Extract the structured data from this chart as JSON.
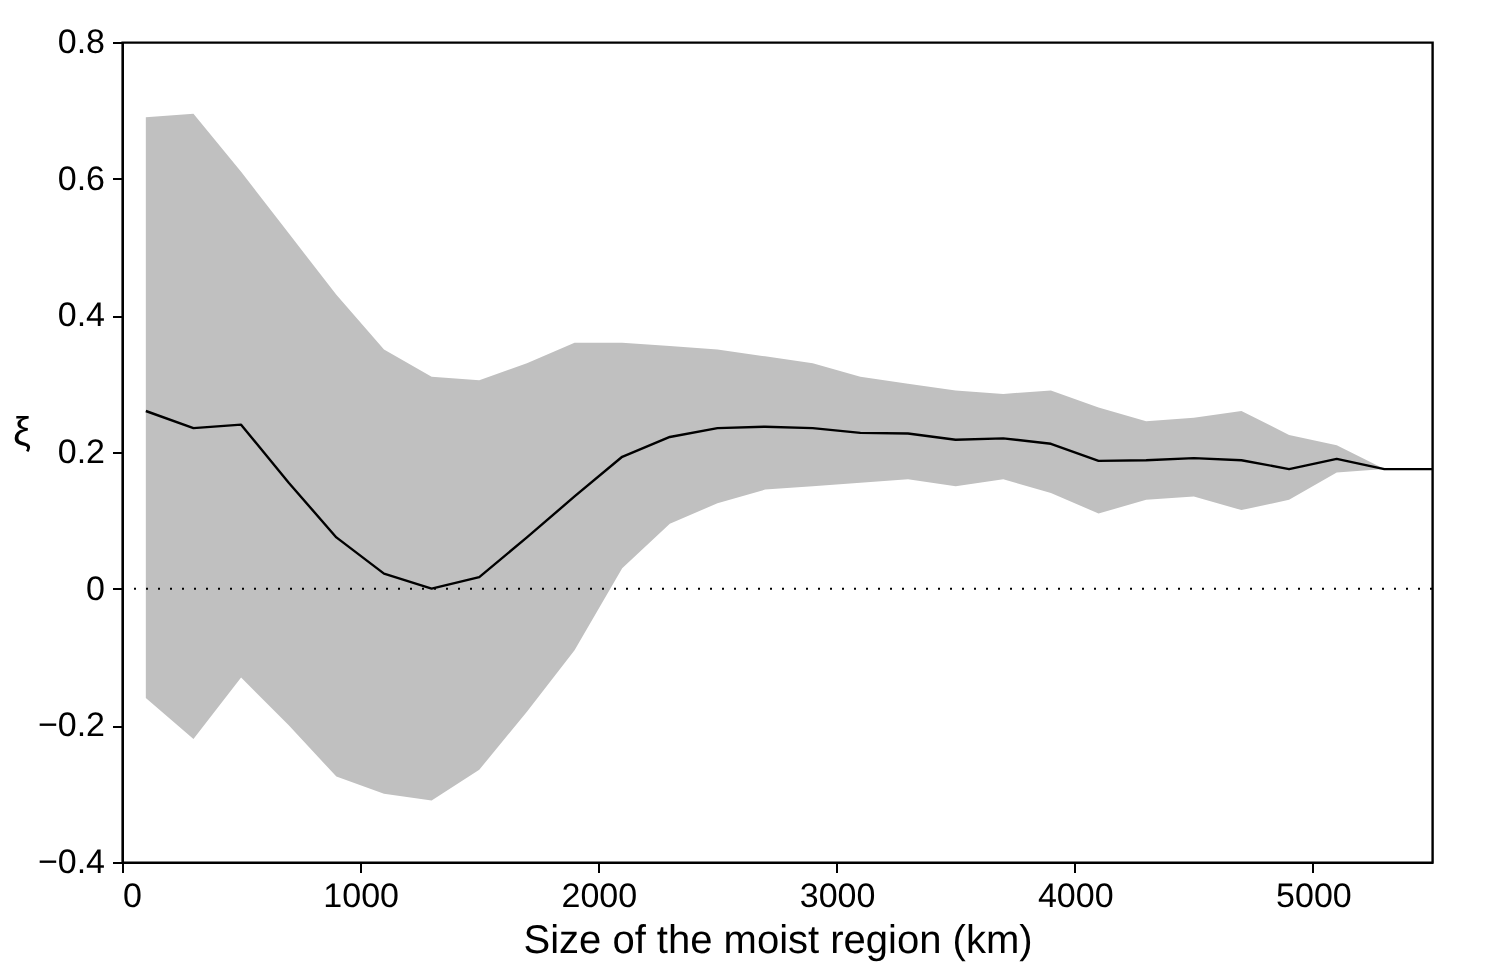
{
  "chart_data": {
    "type": "line",
    "xlabel": "Size of the moist region (km)",
    "ylabel": "ξ",
    "x": [
      100,
      300,
      500,
      700,
      900,
      1100,
      1300,
      1500,
      1700,
      1900,
      2100,
      2300,
      2500,
      2700,
      2900,
      3100,
      3300,
      3500,
      3700,
      3900,
      4100,
      4300,
      4500,
      4700,
      4900,
      5100,
      5300,
      5500
    ],
    "series": [
      {
        "color": "#000000",
        "values": [
          0.26,
          0.235,
          0.24,
          0.155,
          0.075,
          0.022,
          0,
          0.017,
          0.075,
          0.135,
          0.193,
          0.222,
          0.235,
          0.237,
          0.235,
          0.228,
          0.227,
          0.218,
          0.22,
          0.212,
          0.187,
          0.188,
          0.191,
          0.188,
          0.175,
          0.19,
          0.175,
          0.175
        ],
        "upper": [
          0.69,
          0.695,
          0.61,
          0.52,
          0.43,
          0.35,
          0.31,
          0.305,
          0.33,
          0.36,
          0.36,
          0.355,
          0.35,
          0.34,
          0.33,
          0.31,
          0.3,
          0.29,
          0.285,
          0.29,
          0.265,
          0.245,
          0.25,
          0.26,
          0.225,
          0.21,
          0.175,
          0.175
        ],
        "lower": [
          -0.16,
          -0.22,
          -0.13,
          -0.2,
          -0.275,
          -0.3,
          -0.31,
          -0.265,
          -0.18,
          -0.09,
          0.03,
          0.095,
          0.125,
          0.145,
          0.15,
          0.155,
          0.16,
          0.15,
          0.16,
          0.14,
          0.11,
          0.13,
          0.135,
          0.115,
          0.13,
          0.17,
          0.175,
          0.175
        ]
      }
    ],
    "xlim": [
      0,
      5500
    ],
    "xticks": [
      0,
      1000,
      2000,
      3000,
      4000,
      5000
    ],
    "ylim": [
      -0.4,
      0.8
    ],
    "yticks": [
      {
        "value": -0.4,
        "label": "−0.4"
      },
      {
        "value": -0.2,
        "label": "−0.2"
      },
      0,
      0.2,
      0.4,
      0.6,
      0.8
    ],
    "ref_lines": [
      {
        "axis": "y",
        "value": 0,
        "line_style": "dotted",
        "color": "#000000"
      }
    ],
    "grid": false,
    "line_style": "solid",
    "marker": "none"
  }
}
